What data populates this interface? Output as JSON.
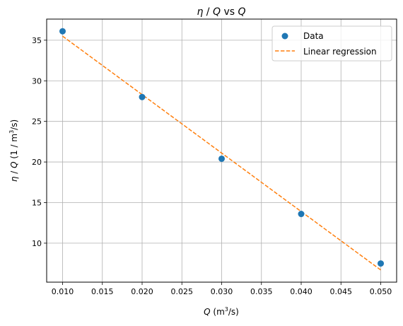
{
  "chart_data": {
    "type": "scatter",
    "title": {
      "eta": "η",
      "sep1": " / ",
      "q": "Q",
      "rest": " vs ",
      "q2": "Q"
    },
    "xlabel": {
      "q": "Q",
      "unit_pre": " (m",
      "sup": "3",
      "unit_post": "/s)"
    },
    "ylabel": {
      "eta": "η",
      "sep": " / ",
      "q": "Q",
      "unit_pre": " (1 / m",
      "sup": "3",
      "unit_post": "/s)"
    },
    "xlim": [
      0.008,
      0.052
    ],
    "ylim": [
      5.2,
      37.6
    ],
    "xticks": [
      0.01,
      0.015,
      0.02,
      0.025,
      0.03,
      0.035,
      0.04,
      0.045,
      0.05
    ],
    "xtick_labels": [
      "0.010",
      "0.015",
      "0.020",
      "0.025",
      "0.030",
      "0.035",
      "0.040",
      "0.045",
      "0.050"
    ],
    "yticks": [
      10,
      15,
      20,
      25,
      30,
      35
    ],
    "ytick_labels": [
      "10",
      "15",
      "20",
      "25",
      "30",
      "35"
    ],
    "grid": true,
    "legend_position": "top-right",
    "series": [
      {
        "name": "Data",
        "kind": "scatter",
        "color": "#1f77b4",
        "x": [
          0.01,
          0.02,
          0.03,
          0.04,
          0.05
        ],
        "y": [
          36.1,
          28.0,
          20.4,
          13.6,
          7.5
        ]
      },
      {
        "name": "Linear regression",
        "kind": "line",
        "style": "dashed",
        "color": "#ff7f0e",
        "x": [
          0.01,
          0.05
        ],
        "y": [
          35.5,
          6.7
        ]
      }
    ]
  }
}
